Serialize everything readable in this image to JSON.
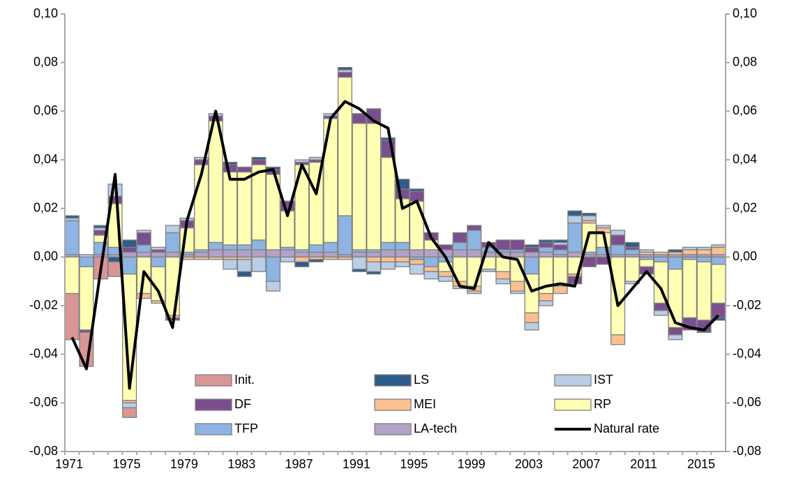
{
  "chart_data": {
    "type": "bar",
    "categories": [
      "1971",
      null,
      null,
      null,
      "1975",
      null,
      null,
      null,
      "1979",
      null,
      null,
      null,
      "1983",
      null,
      null,
      null,
      "1987",
      null,
      null,
      null,
      "1991",
      null,
      null,
      null,
      "1995",
      null,
      null,
      null,
      "1999",
      null,
      null,
      null,
      "2003",
      null,
      null,
      null,
      "2007",
      null,
      null,
      null,
      "2011",
      null,
      null,
      null,
      "2015",
      null
    ],
    "ylim": [
      -0.08,
      0.1
    ],
    "yticks": [
      {
        "value": -0.08,
        "label": "-0,08"
      },
      {
        "value": -0.06,
        "label": "-0,06"
      },
      {
        "value": -0.04,
        "label": "-0,04"
      },
      {
        "value": -0.02,
        "label": "-0,02"
      },
      {
        "value": 0,
        "label": "0,00"
      },
      {
        "value": 0.02,
        "label": "0,02"
      },
      {
        "value": 0.04,
        "label": "0,04"
      },
      {
        "value": 0.06,
        "label": "0,06"
      },
      {
        "value": 0.08,
        "label": "0,08"
      },
      {
        "value": 0.1,
        "label": "0,10"
      }
    ],
    "y2lim": [
      -0.08,
      0.1
    ],
    "y2ticks": [
      {
        "value": -0.08,
        "label": "-0,08"
      },
      {
        "value": -0.06,
        "label": "-0,06"
      },
      {
        "value": -0.04,
        "label": "-0,04"
      },
      {
        "value": -0.02,
        "label": "-0,02"
      },
      {
        "value": 0,
        "label": "0,00"
      },
      {
        "value": 0.02,
        "label": "0,02"
      },
      {
        "value": 0.04,
        "label": "0,04"
      },
      {
        "value": 0.06,
        "label": "0,06"
      },
      {
        "value": 0.08,
        "label": "0,08"
      },
      {
        "value": 0.1,
        "label": "0,10"
      }
    ],
    "stacked": true,
    "series": [
      {
        "name": "Init.",
        "color": "#d99694",
        "values": [
          -0.019,
          -0.014,
          -0.009,
          -0.006,
          -0.004,
          0,
          0,
          0,
          0,
          0,
          0,
          0,
          0,
          0,
          0,
          0,
          0,
          0,
          0,
          0,
          0,
          0,
          0,
          0,
          0,
          0,
          0,
          0,
          0,
          0,
          0,
          0,
          0,
          0,
          0,
          0,
          0,
          0,
          0,
          0,
          0,
          0,
          0,
          0,
          0,
          0
        ]
      },
      {
        "name": "LS",
        "color": "#2e5c8a",
        "values": [
          0.001,
          0,
          0.001,
          -0.002,
          0.003,
          0,
          0,
          0,
          0,
          0,
          0,
          0.001,
          -0.002,
          0.001,
          0.001,
          0,
          -0.002,
          -0.001,
          0,
          0.001,
          -0.001,
          -0.001,
          0.001,
          0.004,
          0.001,
          0,
          0,
          0,
          0,
          0,
          0,
          0,
          0.001,
          0.001,
          0.001,
          0.002,
          0.001,
          0,
          0,
          0.002,
          0,
          0,
          0.001,
          0,
          0,
          -0.001
        ]
      },
      {
        "name": "IST",
        "color": "#b9cde5",
        "values": [
          0.001,
          0.001,
          0.001,
          0.005,
          -0.002,
          0.001,
          0.001,
          0.003,
          0.001,
          0.001,
          0.001,
          -0.004,
          -0.005,
          -0.006,
          -0.004,
          -0.002,
          0.001,
          0.001,
          0.001,
          0.001,
          -0.005,
          -0.004,
          -0.003,
          -0.002,
          -0.004,
          -0.003,
          -0.002,
          -0.001,
          -0.001,
          -0.001,
          -0.002,
          -0.001,
          -0.003,
          -0.002,
          0.001,
          0.003,
          0.002,
          0.001,
          0.002,
          -0.001,
          0.001,
          -0.002,
          -0.002,
          0.001,
          0.001,
          0.001
        ]
      },
      {
        "name": "DF",
        "color": "#7b4f8e",
        "values": [
          0,
          -0.001,
          0.002,
          0.003,
          0.002,
          0.005,
          0.001,
          -0.001,
          0.003,
          0.002,
          0.002,
          0.003,
          0.002,
          0.002,
          0.002,
          0.004,
          0.001,
          0.001,
          0.001,
          0.002,
          0.004,
          0.006,
          0.007,
          0.004,
          0.004,
          0.003,
          0.002,
          0.004,
          0.002,
          0.002,
          0.004,
          0.004,
          0.002,
          0.002,
          0.002,
          -0.003,
          -0.004,
          -0.003,
          0.004,
          0.001,
          -0.003,
          -0.003,
          -0.003,
          -0.005,
          -0.005,
          -0.006
        ]
      },
      {
        "name": "MEI",
        "color": "#fac090",
        "values": [
          0,
          0,
          0,
          0,
          -0.001,
          -0.002,
          -0.001,
          -0.001,
          -0.001,
          -0.001,
          -0.001,
          -0.001,
          -0.001,
          0,
          0,
          0,
          -0.002,
          -0.001,
          -0.001,
          -0.001,
          0,
          -0.002,
          -0.002,
          -0.002,
          -0.002,
          -0.002,
          -0.002,
          -0.002,
          -0.002,
          0,
          -0.003,
          -0.004,
          -0.004,
          -0.003,
          -0.003,
          -0.001,
          0.001,
          0.002,
          -0.004,
          0,
          0.001,
          0.001,
          0.001,
          0.002,
          0.002,
          0.003
        ]
      },
      {
        "name": "RP",
        "color": "#ffffb3",
        "values": [
          -0.015,
          -0.026,
          0.003,
          0.018,
          -0.052,
          -0.015,
          -0.014,
          -0.024,
          0.01,
          0.035,
          0.05,
          0.03,
          0.03,
          0.031,
          0.031,
          0.015,
          0.035,
          0.034,
          0.051,
          0.057,
          0.052,
          0.052,
          0.035,
          0.018,
          0.02,
          0.004,
          -0.004,
          -0.01,
          -0.012,
          -0.005,
          -0.006,
          -0.01,
          -0.016,
          -0.015,
          -0.012,
          -0.007,
          0.012,
          0.006,
          -0.032,
          -0.01,
          -0.003,
          -0.017,
          -0.024,
          -0.024,
          -0.024,
          -0.016
        ]
      },
      {
        "name": "TFP",
        "color": "#8db4e2",
        "values": [
          0.014,
          -0.004,
          0.005,
          0.003,
          -0.007,
          0.003,
          -0.004,
          0.008,
          0.001,
          0.001,
          0.003,
          0.002,
          0.002,
          0.004,
          -0.01,
          0.001,
          0.001,
          0.003,
          0.004,
          0.016,
          0.001,
          0.001,
          0.003,
          0.003,
          -0.001,
          -0.004,
          -0.002,
          0.003,
          0.008,
          0.002,
          0.001,
          0.001,
          -0.007,
          0.002,
          0.002,
          0.012,
          0.001,
          0.003,
          0.004,
          0.002,
          -0.001,
          -0.002,
          -0.005,
          -0.001,
          -0.002,
          -0.003
        ]
      },
      {
        "name": "LA-tech",
        "color": "#b3a2c7",
        "values": [
          0.001,
          0,
          0.001,
          0.001,
          0.002,
          0.002,
          0.002,
          0.002,
          0.001,
          0.002,
          0.003,
          0.003,
          0.003,
          0.003,
          0.003,
          0.003,
          0.002,
          0.002,
          0.002,
          0.001,
          0.002,
          0.002,
          0.003,
          0.003,
          0.003,
          0.003,
          0.003,
          0.003,
          0.003,
          0.002,
          0.002,
          0.002,
          0.002,
          0.002,
          0.001,
          0.002,
          0.001,
          0.001,
          0.001,
          0.001,
          0.001,
          0.001,
          0.001,
          0.001,
          0.001,
          0.001
        ]
      },
      {
        "name": "Natural rate",
        "color": "#000000",
        "type": "line",
        "values": [
          -0.033,
          -0.046,
          -0.005,
          0.034,
          -0.054,
          -0.006,
          -0.014,
          -0.029,
          0.015,
          0.034,
          0.06,
          0.032,
          0.032,
          0.035,
          0.036,
          0.017,
          0.038,
          0.026,
          0.057,
          0.064,
          0.061,
          0.056,
          0.053,
          0.02,
          0.023,
          0.008,
          0.0,
          -0.012,
          -0.013,
          0.006,
          0.0,
          -0.001,
          -0.014,
          -0.012,
          -0.011,
          -0.012,
          0.01,
          0.01,
          -0.02,
          -0.013,
          -0.006,
          -0.013,
          -0.027,
          -0.029,
          -0.03,
          -0.024
        ]
      }
    ]
  }
}
